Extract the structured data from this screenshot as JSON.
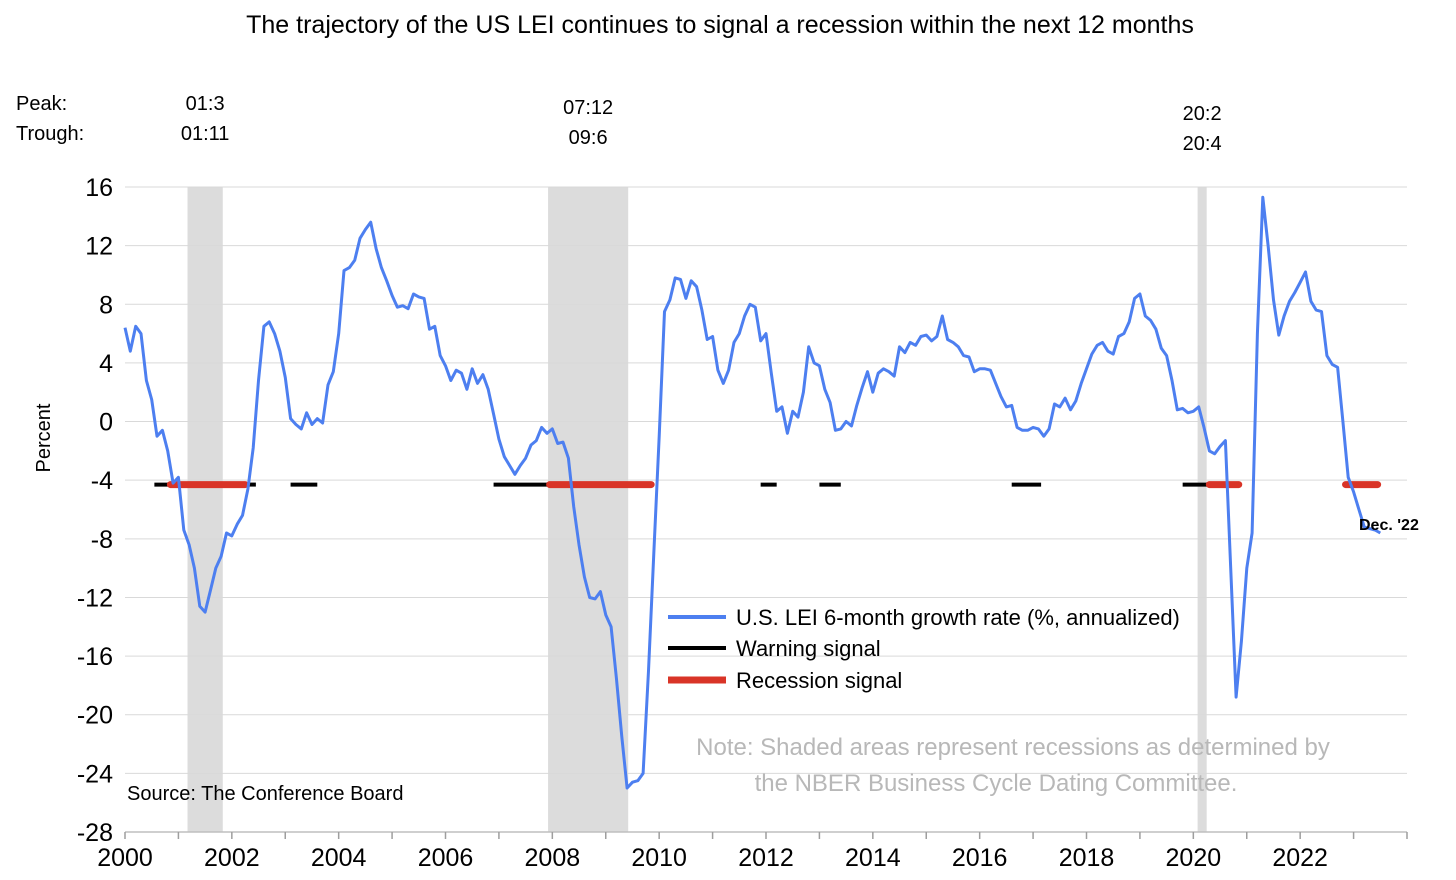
{
  "chart_data": {
    "type": "line",
    "title": "The trajectory of the US LEI continues to signal a recession within the next 12 months",
    "ylabel": "Percent",
    "ylim": [
      -28,
      16
    ],
    "yticks": [
      "16",
      "12",
      "8",
      "4",
      "0",
      "-4",
      "-8",
      "-12",
      "-16",
      "-20",
      "-24",
      "-28"
    ],
    "xlim": [
      2000,
      2024
    ],
    "xticks": [
      "2000",
      "2002",
      "2004",
      "2006",
      "2008",
      "2010",
      "2012",
      "2014",
      "2016",
      "2018",
      "2020",
      "2022"
    ],
    "grid": true,
    "legend_position": "lower-right",
    "peak_label": "Peak:",
    "trough_label": "Trough:",
    "recessions": [
      {
        "start": 2001.17,
        "end": 2001.83,
        "peak": "01:3",
        "trough": "01:11"
      },
      {
        "start": 2007.92,
        "end": 2009.42,
        "peak": "07:12",
        "trough": "09:6"
      },
      {
        "start": 2020.08,
        "end": 2020.25,
        "peak": "20:2",
        "trough": "20:4"
      }
    ],
    "series": [
      {
        "name": "U.S. LEI 6-month growth rate (%, annualized)",
        "color": "#4d7ff0",
        "points": [
          [
            2000.0,
            6.4
          ],
          [
            2000.1,
            4.8
          ],
          [
            2000.2,
            6.5
          ],
          [
            2000.3,
            6.0
          ],
          [
            2000.4,
            2.8
          ],
          [
            2000.5,
            1.5
          ],
          [
            2000.6,
            -1.0
          ],
          [
            2000.7,
            -0.6
          ],
          [
            2000.8,
            -2.0
          ],
          [
            2000.9,
            -4.2
          ],
          [
            2001.0,
            -3.8
          ],
          [
            2001.1,
            -7.4
          ],
          [
            2001.2,
            -8.4
          ],
          [
            2001.3,
            -10.0
          ],
          [
            2001.4,
            -12.6
          ],
          [
            2001.5,
            -13.0
          ],
          [
            2001.6,
            -11.5
          ],
          [
            2001.7,
            -10.0
          ],
          [
            2001.8,
            -9.2
          ],
          [
            2001.9,
            -7.6
          ],
          [
            2002.0,
            -7.8
          ],
          [
            2002.1,
            -7.0
          ],
          [
            2002.2,
            -6.4
          ],
          [
            2002.3,
            -4.6
          ],
          [
            2002.4,
            -1.8
          ],
          [
            2002.5,
            2.8
          ],
          [
            2002.6,
            6.5
          ],
          [
            2002.7,
            6.8
          ],
          [
            2002.8,
            6.0
          ],
          [
            2002.9,
            4.8
          ],
          [
            2003.0,
            3.0
          ],
          [
            2003.1,
            0.2
          ],
          [
            2003.2,
            -0.2
          ],
          [
            2003.3,
            -0.5
          ],
          [
            2003.4,
            0.6
          ],
          [
            2003.5,
            -0.2
          ],
          [
            2003.6,
            0.2
          ],
          [
            2003.7,
            -0.1
          ],
          [
            2003.8,
            2.5
          ],
          [
            2003.9,
            3.4
          ],
          [
            2004.0,
            6.0
          ],
          [
            2004.1,
            10.3
          ],
          [
            2004.2,
            10.5
          ],
          [
            2004.3,
            11.0
          ],
          [
            2004.4,
            12.5
          ],
          [
            2004.5,
            13.1
          ],
          [
            2004.6,
            13.6
          ],
          [
            2004.7,
            11.8
          ],
          [
            2004.8,
            10.5
          ],
          [
            2004.9,
            9.6
          ],
          [
            2005.0,
            8.6
          ],
          [
            2005.1,
            7.8
          ],
          [
            2005.2,
            7.9
          ],
          [
            2005.3,
            7.7
          ],
          [
            2005.4,
            8.7
          ],
          [
            2005.5,
            8.5
          ],
          [
            2005.6,
            8.4
          ],
          [
            2005.7,
            6.3
          ],
          [
            2005.8,
            6.5
          ],
          [
            2005.9,
            4.5
          ],
          [
            2006.0,
            3.8
          ],
          [
            2006.1,
            2.8
          ],
          [
            2006.2,
            3.5
          ],
          [
            2006.3,
            3.3
          ],
          [
            2006.4,
            2.2
          ],
          [
            2006.5,
            3.6
          ],
          [
            2006.6,
            2.6
          ],
          [
            2006.7,
            3.2
          ],
          [
            2006.8,
            2.2
          ],
          [
            2006.9,
            0.5
          ],
          [
            2007.0,
            -1.2
          ],
          [
            2007.1,
            -2.4
          ],
          [
            2007.2,
            -3.0
          ],
          [
            2007.3,
            -3.6
          ],
          [
            2007.4,
            -3.0
          ],
          [
            2007.5,
            -2.5
          ],
          [
            2007.6,
            -1.6
          ],
          [
            2007.7,
            -1.3
          ],
          [
            2007.8,
            -0.4
          ],
          [
            2007.9,
            -0.8
          ],
          [
            2008.0,
            -0.5
          ],
          [
            2008.1,
            -1.5
          ],
          [
            2008.2,
            -1.4
          ],
          [
            2008.3,
            -2.5
          ],
          [
            2008.4,
            -5.8
          ],
          [
            2008.5,
            -8.4
          ],
          [
            2008.6,
            -10.6
          ],
          [
            2008.7,
            -12.0
          ],
          [
            2008.8,
            -12.1
          ],
          [
            2008.9,
            -11.6
          ],
          [
            2009.0,
            -13.2
          ],
          [
            2009.1,
            -14.0
          ],
          [
            2009.2,
            -17.5
          ],
          [
            2009.3,
            -21.5
          ],
          [
            2009.4,
            -25.0
          ],
          [
            2009.5,
            -24.6
          ],
          [
            2009.6,
            -24.5
          ],
          [
            2009.7,
            -24.0
          ],
          [
            2009.8,
            -17.0
          ],
          [
            2009.9,
            -9.0
          ],
          [
            2010.0,
            -1.0
          ],
          [
            2010.1,
            7.5
          ],
          [
            2010.2,
            8.3
          ],
          [
            2010.3,
            9.8
          ],
          [
            2010.4,
            9.7
          ],
          [
            2010.5,
            8.4
          ],
          [
            2010.6,
            9.6
          ],
          [
            2010.7,
            9.2
          ],
          [
            2010.8,
            7.6
          ],
          [
            2010.9,
            5.6
          ],
          [
            2011.0,
            5.8
          ],
          [
            2011.1,
            3.5
          ],
          [
            2011.2,
            2.6
          ],
          [
            2011.3,
            3.5
          ],
          [
            2011.4,
            5.4
          ],
          [
            2011.5,
            6.0
          ],
          [
            2011.6,
            7.2
          ],
          [
            2011.7,
            8.0
          ],
          [
            2011.8,
            7.8
          ],
          [
            2011.9,
            5.5
          ],
          [
            2012.0,
            6.0
          ],
          [
            2012.1,
            3.3
          ],
          [
            2012.2,
            0.7
          ],
          [
            2012.3,
            1.0
          ],
          [
            2012.4,
            -0.8
          ],
          [
            2012.5,
            0.7
          ],
          [
            2012.6,
            0.3
          ],
          [
            2012.7,
            2.0
          ],
          [
            2012.8,
            5.1
          ],
          [
            2012.9,
            4.0
          ],
          [
            2013.0,
            3.8
          ],
          [
            2013.1,
            2.2
          ],
          [
            2013.2,
            1.3
          ],
          [
            2013.3,
            -0.6
          ],
          [
            2013.4,
            -0.5
          ],
          [
            2013.5,
            0.0
          ],
          [
            2013.6,
            -0.3
          ],
          [
            2013.7,
            1.1
          ],
          [
            2013.8,
            2.3
          ],
          [
            2013.9,
            3.4
          ],
          [
            2014.0,
            2.0
          ],
          [
            2014.1,
            3.3
          ],
          [
            2014.2,
            3.6
          ],
          [
            2014.3,
            3.4
          ],
          [
            2014.4,
            3.1
          ],
          [
            2014.5,
            5.1
          ],
          [
            2014.6,
            4.7
          ],
          [
            2014.7,
            5.4
          ],
          [
            2014.8,
            5.2
          ],
          [
            2014.9,
            5.8
          ],
          [
            2015.0,
            5.9
          ],
          [
            2015.1,
            5.5
          ],
          [
            2015.2,
            5.8
          ],
          [
            2015.3,
            7.2
          ],
          [
            2015.4,
            5.6
          ],
          [
            2015.5,
            5.4
          ],
          [
            2015.6,
            5.1
          ],
          [
            2015.7,
            4.5
          ],
          [
            2015.8,
            4.4
          ],
          [
            2015.9,
            3.4
          ],
          [
            2016.0,
            3.6
          ],
          [
            2016.1,
            3.6
          ],
          [
            2016.2,
            3.5
          ],
          [
            2016.3,
            2.6
          ],
          [
            2016.4,
            1.7
          ],
          [
            2016.5,
            1.0
          ],
          [
            2016.6,
            1.1
          ],
          [
            2016.7,
            -0.4
          ],
          [
            2016.8,
            -0.6
          ],
          [
            2016.9,
            -0.6
          ],
          [
            2017.0,
            -0.4
          ],
          [
            2017.1,
            -0.5
          ],
          [
            2017.2,
            -1.0
          ],
          [
            2017.3,
            -0.5
          ],
          [
            2017.4,
            1.2
          ],
          [
            2017.5,
            1.0
          ],
          [
            2017.6,
            1.6
          ],
          [
            2017.7,
            0.8
          ],
          [
            2017.8,
            1.4
          ],
          [
            2017.9,
            2.6
          ],
          [
            2018.0,
            3.6
          ],
          [
            2018.1,
            4.6
          ],
          [
            2018.2,
            5.2
          ],
          [
            2018.3,
            5.4
          ],
          [
            2018.4,
            4.8
          ],
          [
            2018.5,
            4.6
          ],
          [
            2018.6,
            5.8
          ],
          [
            2018.7,
            6.0
          ],
          [
            2018.8,
            6.8
          ],
          [
            2018.9,
            8.4
          ],
          [
            2019.0,
            8.7
          ],
          [
            2019.1,
            7.2
          ],
          [
            2019.2,
            6.9
          ],
          [
            2019.3,
            6.3
          ],
          [
            2019.4,
            5.0
          ],
          [
            2019.5,
            4.5
          ],
          [
            2019.6,
            2.8
          ],
          [
            2019.7,
            0.8
          ],
          [
            2019.8,
            0.9
          ],
          [
            2019.9,
            0.6
          ],
          [
            2020.0,
            0.7
          ],
          [
            2020.1,
            1.0
          ],
          [
            2020.2,
            -0.4
          ],
          [
            2020.3,
            -2.0
          ],
          [
            2020.4,
            -2.2
          ],
          [
            2020.5,
            -1.7
          ],
          [
            2020.6,
            -1.3
          ],
          [
            2020.7,
            -10.0
          ],
          [
            2020.8,
            -18.8
          ],
          [
            2020.9,
            -15.0
          ],
          [
            2021.0,
            -10.0
          ],
          [
            2021.1,
            -7.6
          ],
          [
            2021.2,
            6.0
          ],
          [
            2021.3,
            15.3
          ],
          [
            2021.4,
            12.0
          ],
          [
            2021.5,
            8.3
          ],
          [
            2021.6,
            5.9
          ],
          [
            2021.7,
            7.2
          ],
          [
            2021.8,
            8.2
          ],
          [
            2021.9,
            8.8
          ],
          [
            2022.0,
            9.5
          ],
          [
            2022.1,
            10.2
          ],
          [
            2022.2,
            8.2
          ],
          [
            2022.3,
            7.6
          ],
          [
            2022.4,
            7.5
          ],
          [
            2022.5,
            4.5
          ],
          [
            2022.6,
            3.9
          ],
          [
            2022.7,
            3.7
          ],
          [
            2022.8,
            0.0
          ],
          [
            2022.9,
            -3.8
          ],
          [
            2023.0,
            -4.8
          ],
          [
            2023.1,
            -6.0
          ],
          [
            2023.2,
            -7.2
          ],
          [
            2023.3,
            -7.3
          ],
          [
            2023.4,
            -7.4
          ],
          [
            2023.5,
            -7.6
          ]
        ]
      },
      {
        "name": "Warning signal",
        "color": "#000000",
        "level": -4.3,
        "segments": [
          [
            2000.55,
            2000.85
          ],
          [
            2002.25,
            2002.45
          ],
          [
            2003.1,
            2003.6
          ],
          [
            2006.9,
            2007.95
          ],
          [
            2011.9,
            2012.2
          ],
          [
            2013.0,
            2013.4
          ],
          [
            2016.6,
            2017.15
          ],
          [
            2019.8,
            2020.3
          ]
        ]
      },
      {
        "name": "Recession signal",
        "color": "#d93427",
        "level": -4.3,
        "segments": [
          [
            2000.85,
            2002.25
          ],
          [
            2007.95,
            2009.85
          ],
          [
            2020.3,
            2020.85
          ],
          [
            2022.85,
            2023.45
          ]
        ]
      }
    ],
    "end_label": "Dec. '22",
    "note_line1": "Note: Shaded areas represent recessions as determined by",
    "note_line2": "the NBER Business Cycle Dating Committee.",
    "source": "Source: The Conference Board"
  }
}
